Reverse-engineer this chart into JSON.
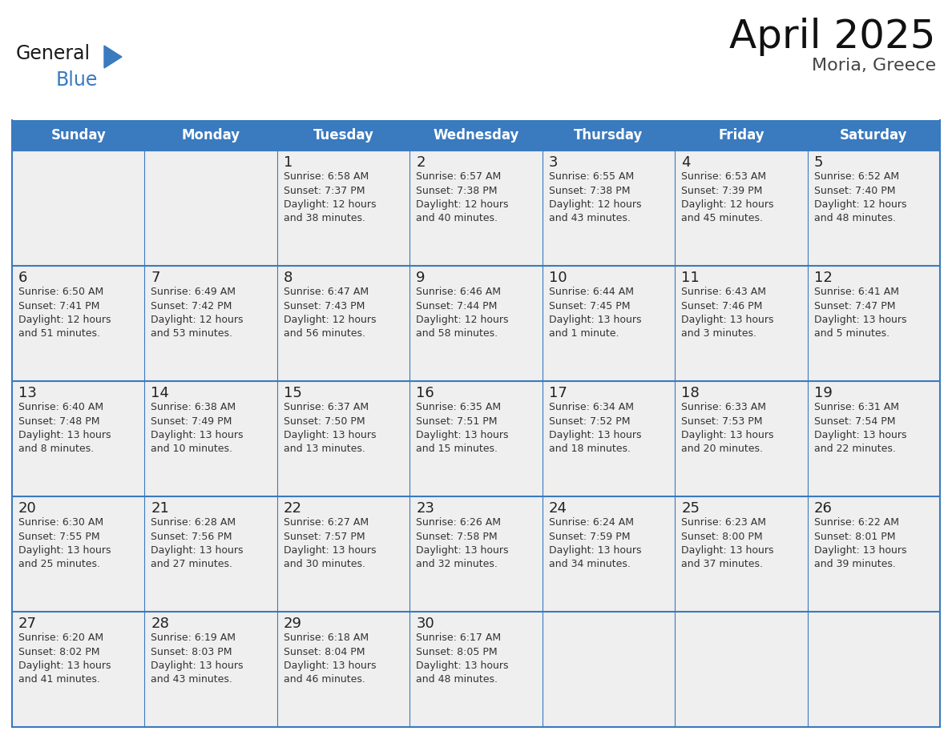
{
  "title": "April 2025",
  "subtitle": "Moria, Greece",
  "header_color": "#3a7abf",
  "header_text_color": "#ffffff",
  "cell_bg_color": "#efefef",
  "cell_border_color": "#3a7abf",
  "day_number_color": "#222222",
  "text_color": "#333333",
  "days_of_week": [
    "Sunday",
    "Monday",
    "Tuesday",
    "Wednesday",
    "Thursday",
    "Friday",
    "Saturday"
  ],
  "calendar_data": [
    [
      "",
      "",
      "1\nSunrise: 6:58 AM\nSunset: 7:37 PM\nDaylight: 12 hours\nand 38 minutes.",
      "2\nSunrise: 6:57 AM\nSunset: 7:38 PM\nDaylight: 12 hours\nand 40 minutes.",
      "3\nSunrise: 6:55 AM\nSunset: 7:38 PM\nDaylight: 12 hours\nand 43 minutes.",
      "4\nSunrise: 6:53 AM\nSunset: 7:39 PM\nDaylight: 12 hours\nand 45 minutes.",
      "5\nSunrise: 6:52 AM\nSunset: 7:40 PM\nDaylight: 12 hours\nand 48 minutes."
    ],
    [
      "6\nSunrise: 6:50 AM\nSunset: 7:41 PM\nDaylight: 12 hours\nand 51 minutes.",
      "7\nSunrise: 6:49 AM\nSunset: 7:42 PM\nDaylight: 12 hours\nand 53 minutes.",
      "8\nSunrise: 6:47 AM\nSunset: 7:43 PM\nDaylight: 12 hours\nand 56 minutes.",
      "9\nSunrise: 6:46 AM\nSunset: 7:44 PM\nDaylight: 12 hours\nand 58 minutes.",
      "10\nSunrise: 6:44 AM\nSunset: 7:45 PM\nDaylight: 13 hours\nand 1 minute.",
      "11\nSunrise: 6:43 AM\nSunset: 7:46 PM\nDaylight: 13 hours\nand 3 minutes.",
      "12\nSunrise: 6:41 AM\nSunset: 7:47 PM\nDaylight: 13 hours\nand 5 minutes."
    ],
    [
      "13\nSunrise: 6:40 AM\nSunset: 7:48 PM\nDaylight: 13 hours\nand 8 minutes.",
      "14\nSunrise: 6:38 AM\nSunset: 7:49 PM\nDaylight: 13 hours\nand 10 minutes.",
      "15\nSunrise: 6:37 AM\nSunset: 7:50 PM\nDaylight: 13 hours\nand 13 minutes.",
      "16\nSunrise: 6:35 AM\nSunset: 7:51 PM\nDaylight: 13 hours\nand 15 minutes.",
      "17\nSunrise: 6:34 AM\nSunset: 7:52 PM\nDaylight: 13 hours\nand 18 minutes.",
      "18\nSunrise: 6:33 AM\nSunset: 7:53 PM\nDaylight: 13 hours\nand 20 minutes.",
      "19\nSunrise: 6:31 AM\nSunset: 7:54 PM\nDaylight: 13 hours\nand 22 minutes."
    ],
    [
      "20\nSunrise: 6:30 AM\nSunset: 7:55 PM\nDaylight: 13 hours\nand 25 minutes.",
      "21\nSunrise: 6:28 AM\nSunset: 7:56 PM\nDaylight: 13 hours\nand 27 minutes.",
      "22\nSunrise: 6:27 AM\nSunset: 7:57 PM\nDaylight: 13 hours\nand 30 minutes.",
      "23\nSunrise: 6:26 AM\nSunset: 7:58 PM\nDaylight: 13 hours\nand 32 minutes.",
      "24\nSunrise: 6:24 AM\nSunset: 7:59 PM\nDaylight: 13 hours\nand 34 minutes.",
      "25\nSunrise: 6:23 AM\nSunset: 8:00 PM\nDaylight: 13 hours\nand 37 minutes.",
      "26\nSunrise: 6:22 AM\nSunset: 8:01 PM\nDaylight: 13 hours\nand 39 minutes."
    ],
    [
      "27\nSunrise: 6:20 AM\nSunset: 8:02 PM\nDaylight: 13 hours\nand 41 minutes.",
      "28\nSunrise: 6:19 AM\nSunset: 8:03 PM\nDaylight: 13 hours\nand 43 minutes.",
      "29\nSunrise: 6:18 AM\nSunset: 8:04 PM\nDaylight: 13 hours\nand 46 minutes.",
      "30\nSunrise: 6:17 AM\nSunset: 8:05 PM\nDaylight: 13 hours\nand 48 minutes.",
      "",
      "",
      ""
    ]
  ],
  "logo_color_general": "#1a1a1a",
  "logo_color_blue": "#3a7abf",
  "logo_triangle_color": "#3a7abf",
  "title_fontsize": 36,
  "subtitle_fontsize": 16,
  "header_fontsize": 12,
  "day_num_fontsize": 13,
  "cell_text_fontsize": 9
}
